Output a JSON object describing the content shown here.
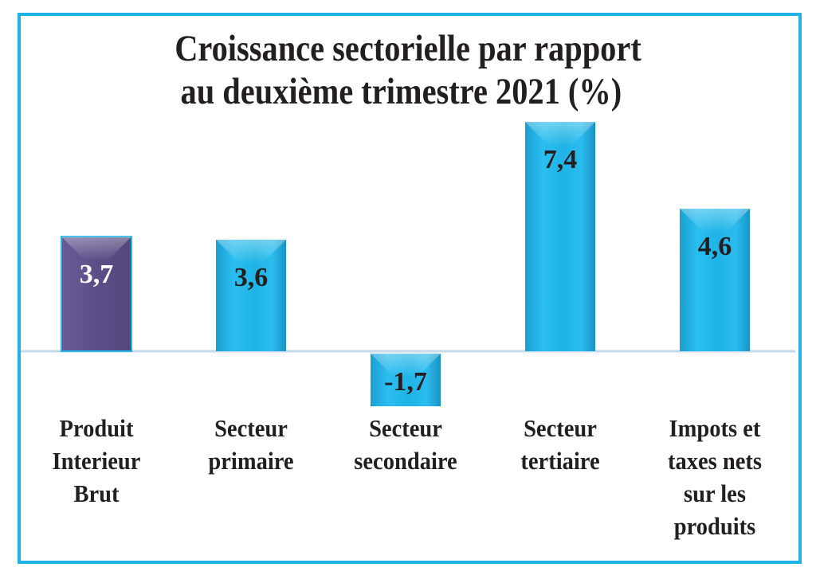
{
  "chart_data": {
    "type": "bar",
    "title": "Croissance sectorielle par rapport au deuxième trimestre 2021 (%)",
    "title_lines": [
      "Croissance sectorielle par rapport",
      "au deuxième trimestre  2021 (%)"
    ],
    "categories": [
      [
        "Produit",
        "Interieur",
        "Brut"
      ],
      [
        "Secteur",
        "primaire"
      ],
      [
        "Secteur",
        "secondaire"
      ],
      [
        "Secteur",
        "tertiaire"
      ],
      [
        "Impots et",
        "taxes nets",
        "sur les",
        "produits"
      ]
    ],
    "values": [
      3.7,
      3.6,
      -1.7,
      7.4,
      4.6
    ],
    "value_labels": [
      "3,7",
      "3,6",
      "-1,7",
      "7,4",
      "4,6"
    ],
    "xlabel": "",
    "ylabel": "",
    "ylim": [
      -1.7,
      7.4
    ],
    "grid": false,
    "legend": "none",
    "colors": {
      "highlight_bar": "#5f4f8a",
      "bar": "#21b6e8",
      "frame": "#1fb2e6",
      "axis": "#c5d9ef",
      "highlight_label": "#ffffff",
      "label": "#231f20"
    }
  }
}
